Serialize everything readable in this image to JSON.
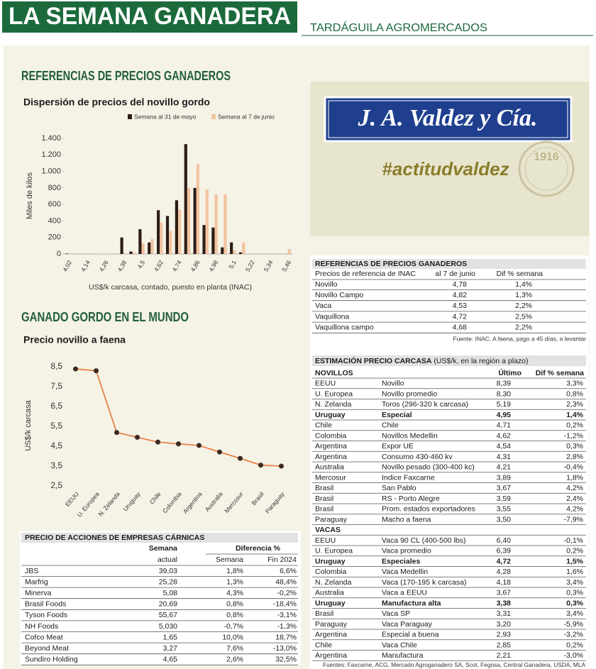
{
  "header": {
    "title": "LA SEMANA GANADERA",
    "subtitle": "TARDÁGUILA AGROMERCADOS"
  },
  "sections": [
    "REFERENCIAS DE PRECIOS GANADEROS",
    "GANADO GORDO EN EL MUNDO"
  ],
  "ad": {
    "brand": "J. A. Valdez y Cía.",
    "slogan": "#actitudvaldez",
    "year": "1916"
  },
  "chart_data": [
    {
      "type": "bar",
      "title": "Dispersión de precios del novillo gordo",
      "categories": [
        "4,02",
        null,
        "4,14",
        null,
        "4,26",
        null,
        "4,38",
        null,
        "4,5",
        null,
        "4,62",
        null,
        "4,74",
        null,
        "4,86",
        null,
        "4,98",
        null,
        "5,1",
        null,
        "5,22",
        null,
        "5,34",
        null,
        "5,46"
      ],
      "series": [
        {
          "name": "Semana al 31 de mayo",
          "color": "#2b1d16",
          "values": [
            5,
            0,
            0,
            0,
            0,
            0,
            200,
            30,
            300,
            140,
            530,
            460,
            650,
            1330,
            800,
            350,
            320,
            80,
            140,
            20,
            0,
            0,
            0,
            0,
            0
          ]
        },
        {
          "name": "Semana al 7 de junio",
          "color": "#f3c3a0",
          "values": [
            10,
            5,
            5,
            5,
            5,
            0,
            10,
            20,
            130,
            180,
            380,
            280,
            540,
            800,
            1090,
            780,
            720,
            720,
            40,
            140,
            10,
            0,
            0,
            0,
            60
          ]
        }
      ],
      "ylim": [
        0,
        1400
      ],
      "yticks": [
        0,
        200,
        400,
        600,
        800,
        {
          "value": 1000,
          "label": "1.000"
        },
        {
          "value": 1200,
          "label": "1.200"
        },
        {
          "value": 1400,
          "label": "1.400"
        }
      ],
      "y_label": "Miles de kilos",
      "x_label": "US$/k carcasa, contado, puesto en planta (INAC)"
    },
    {
      "type": "line",
      "title": "Precio novillo a faena",
      "categories": [
        "EEUU",
        "U. Europea",
        "N. Zelanda",
        "Uruguay",
        "Chile",
        "Colombia",
        "Argentina",
        "Australia",
        "Mercosur",
        "Brasil",
        "Paraguay"
      ],
      "values": [
        8.39,
        8.3,
        5.19,
        4.95,
        4.71,
        4.62,
        4.54,
        4.21,
        3.89,
        3.55,
        3.5
      ],
      "color": "#e8824a",
      "marker_color": "#3a2a22",
      "ylim": [
        2.5,
        8.5
      ],
      "yticks": [
        {
          "value": 2.5,
          "label": "2,5"
        },
        {
          "value": 3.5,
          "label": "3,5"
        },
        {
          "value": 4.5,
          "label": "4,5"
        },
        {
          "value": 5.5,
          "label": "5,5"
        },
        {
          "value": 6.5,
          "label": "6,5"
        },
        {
          "value": 7.5,
          "label": "7,5"
        },
        {
          "value": 8.5,
          "label": "8,5"
        }
      ],
      "y_label": "US$/k carcasa"
    }
  ],
  "reference_table": {
    "title": "REFERENCIAS DE PRECIOS GANADEROS",
    "columns": [
      "Precios de referencia de INAC",
      "al 7 de junio",
      "Dif % semana"
    ],
    "rows": [
      [
        "Novillo",
        "4,78",
        "1,4%"
      ],
      [
        "Novillo Campo",
        "4,82",
        "1,3%"
      ],
      [
        "Vaca",
        "4,53",
        "2,2%"
      ],
      [
        "Vaquillona",
        "4,72",
        "2,5%"
      ],
      [
        "Vaquillona campo",
        "4,68",
        "2,2%"
      ]
    ],
    "note": "Fuente: INAC. A faena, pago a 45 días, a levantar"
  },
  "carcass_table": {
    "title": "ESTIMACIÓN PRECIO CARCASA",
    "subtitle": " (US$/k, en la región a plazo)",
    "columns": [
      "Último",
      "Dif % semana"
    ],
    "groups": [
      {
        "name": "NOVILLOS",
        "bold_rows": [
          3
        ],
        "rows": [
          [
            "EEUU",
            "Novillo",
            "8,39",
            "3,3%"
          ],
          [
            "U. Europea",
            "Novillo promedio",
            "8,30",
            "0,8%"
          ],
          [
            "N. Zelanda",
            "Toros (296-320 k carcasa)",
            "5,19",
            "2,3%"
          ],
          [
            "Uruguay",
            "Especial",
            "4,95",
            "1,4%"
          ],
          [
            "Chile",
            "Chile",
            "4,71",
            "0,2%"
          ],
          [
            "Colombia",
            "Novillos Medellin",
            "4,62",
            "-1,2%"
          ],
          [
            "Argentina",
            "Expor UE",
            "4,54",
            "0,3%"
          ],
          [
            "Argentina",
            "Consumo 430-460 kv",
            "4,31",
            "2,8%"
          ],
          [
            "Australia",
            "Novillo pesado (300-400 kc)",
            "4,21",
            "-0,4%"
          ],
          [
            "Mercosur",
            "Indice Faxcarne",
            "3,89",
            "1,8%"
          ],
          [
            "Brasil",
            "San Pablo",
            "3,67",
            "4,2%"
          ],
          [
            "Brasil",
            "RS - Porto Alegre",
            "3,59",
            "2,4%"
          ],
          [
            "Brasil",
            "Prom. estados exportadores",
            "3,55",
            "4,2%"
          ],
          [
            "Paraguay",
            "Macho a faena",
            "3,50",
            "-7,9%"
          ]
        ]
      },
      {
        "name": "VACAS",
        "bold_rows": [
          2,
          6
        ],
        "rows": [
          [
            "EEUU",
            "Vaca 90 CL (400-500 lbs)",
            "6,40",
            "-0,1%"
          ],
          [
            "U. Europea",
            "Vaca promedio",
            "6,39",
            "0,2%"
          ],
          [
            "Uruguay",
            "Especiales",
            "4,72",
            "1,5%"
          ],
          [
            "Colombia",
            "Vaca Medellin",
            "4,28",
            "1,6%"
          ],
          [
            "N. Zelanda",
            "Vaca (170-195 k carcasa)",
            "4,18",
            "3,4%"
          ],
          [
            "Australia",
            "Vaca a EEUU",
            "3,67",
            "0,3%"
          ],
          [
            "Uruguay",
            "Manufactura alta",
            "3,38",
            "0,3%"
          ],
          [
            "Brasil",
            "Vaca SP",
            "3,31",
            "3,4%"
          ],
          [
            "Paraguay",
            "Vaca Paraguay",
            "3,20",
            "-5,9%"
          ],
          [
            "Argentina",
            "Especial a buena",
            "2,93",
            "-3,2%"
          ],
          [
            "Chile",
            "Vaca Chile",
            "2,85",
            "0,2%"
          ],
          [
            "Argentina",
            "Manufactura",
            "2,21",
            "-3,0%"
          ]
        ]
      }
    ],
    "source": "Fuentes: Faxcarne, ACG, Mercado Agroganadero SA, Scot, Fegosa, Central Ganadera, USDA, MLA"
  },
  "stocks_table": {
    "title": "PRECIO DE ACCIONES DE EMPRESAS CÁRNICAS",
    "groups": [
      "Semana",
      "Diferencia %"
    ],
    "columns": [
      "actual",
      "Semana",
      "Fin 2024"
    ],
    "rows": [
      [
        "JBS",
        "39,03",
        "1,8%",
        "6,6%"
      ],
      [
        "Marfrig",
        "25,28",
        "1,3%",
        "48,4%"
      ],
      [
        "Minerva",
        "5,08",
        "4,3%",
        "-0,2%"
      ],
      [
        "Brasil Foods",
        "20,69",
        "0,8%",
        "-18,4%"
      ],
      [
        "Tyson Foods",
        "55,67",
        "0,8%",
        "-3,1%"
      ],
      [
        "NH Foods",
        "5,030",
        "-0,7%",
        "-1,3%"
      ],
      [
        "Cofco Meat",
        "1,65",
        "10,0%",
        "18,7%"
      ],
      [
        "Beyond Meat",
        "3,27",
        "7,6%",
        "-13,0%"
      ],
      [
        "Sundiro Holding",
        "4,65",
        "2,6%",
        "32,5%"
      ]
    ]
  }
}
